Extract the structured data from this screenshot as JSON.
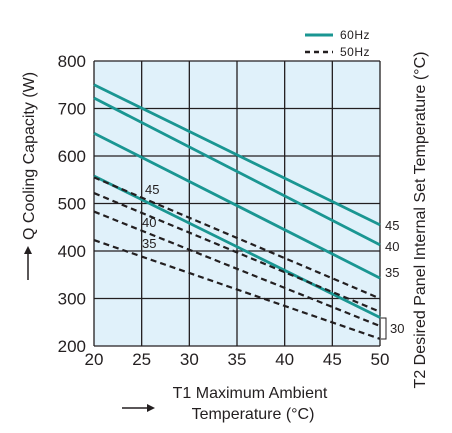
{
  "chart_data": {
    "type": "line",
    "xlabel_lines": [
      "T1 Maximum Ambient",
      "Temperature (°C)"
    ],
    "ylabel": "Q Cooling Capacity (W)",
    "right_label": "T2 Desired Panel Internal Set Temperature (°C)",
    "xlim": [
      20,
      50
    ],
    "ylim": [
      200,
      800
    ],
    "x_ticks": [
      "20",
      "25",
      "30",
      "35",
      "40",
      "45",
      "50"
    ],
    "y_ticks": [
      "200",
      "300",
      "400",
      "500",
      "600",
      "700",
      "800"
    ],
    "grid": true,
    "background_color": "#e0f1fa",
    "legend_position": "top-right",
    "legend": [
      {
        "label": "60Hz",
        "style": "solid",
        "color": "#1a9692"
      },
      {
        "label": "50Hz",
        "style": "dashed",
        "color": "#231f20"
      }
    ],
    "series": [
      {
        "group": "60Hz",
        "t2": "45",
        "x": [
          20,
          50
        ],
        "y": [
          750,
          455
        ]
      },
      {
        "group": "60Hz",
        "t2": "40",
        "x": [
          20,
          50
        ],
        "y": [
          722,
          413
        ]
      },
      {
        "group": "60Hz",
        "t2": "35",
        "x": [
          20,
          50
        ],
        "y": [
          648,
          343
        ]
      },
      {
        "group": "60Hz",
        "t2": "30",
        "x": [
          20,
          50
        ],
        "y": [
          558,
          260
        ]
      },
      {
        "group": "50Hz",
        "t2": "45",
        "x": [
          20,
          50
        ],
        "y": [
          555,
          300
        ]
      },
      {
        "group": "50Hz",
        "t2": "40",
        "x": [
          20,
          50
        ],
        "y": [
          522,
          272
        ]
      },
      {
        "group": "50Hz",
        "t2": "35",
        "x": [
          20,
          50
        ],
        "y": [
          483,
          242
        ]
      },
      {
        "group": "50Hz",
        "t2": "30",
        "x": [
          20,
          50
        ],
        "y": [
          423,
          215
        ]
      }
    ],
    "right_labels": [
      "45",
      "40",
      "35",
      "30"
    ],
    "inner_labels": [
      "45",
      "40",
      "35"
    ],
    "line_colors": {
      "solid": "#1a9692",
      "dashed": "#231f20",
      "grid": "#231f20"
    }
  }
}
